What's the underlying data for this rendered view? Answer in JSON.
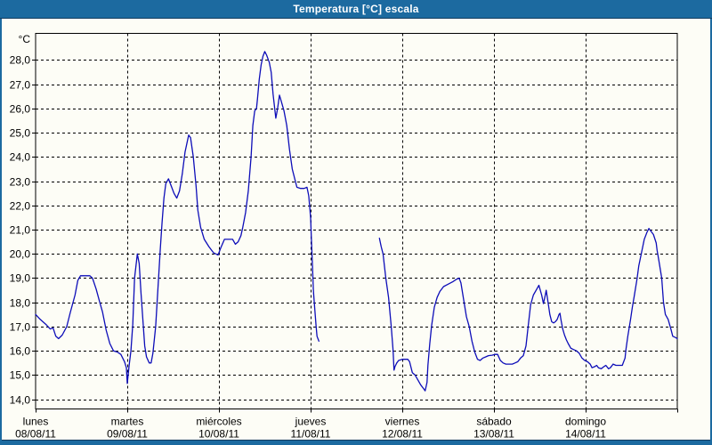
{
  "window": {
    "title": "Temperatura [°C] escala",
    "title_bar_color": "#1c6aa0",
    "frame_border_color": "#123a5e",
    "content_background": "#fdfdf6"
  },
  "chart_data": {
    "type": "line",
    "title": "Temperatura [°C] escala",
    "grid": "dashed",
    "legend": "none",
    "y_axis": {
      "unit": "°C",
      "range": [
        13.6,
        29.1
      ],
      "ticks": [
        {
          "value": 28,
          "label": "28,0"
        },
        {
          "value": 27,
          "label": "27,0"
        },
        {
          "value": 26,
          "label": "26,0"
        },
        {
          "value": 25,
          "label": "25,0"
        },
        {
          "value": 24,
          "label": "24,0"
        },
        {
          "value": 23,
          "label": "23,0"
        },
        {
          "value": 22,
          "label": "22,0"
        },
        {
          "value": 21,
          "label": "21,0"
        },
        {
          "value": 20,
          "label": "20,0"
        },
        {
          "value": 19,
          "label": "19,0"
        },
        {
          "value": 18,
          "label": "18,0"
        },
        {
          "value": 17,
          "label": "17,0"
        },
        {
          "value": 16,
          "label": "16,0"
        },
        {
          "value": 15,
          "label": "15,0"
        },
        {
          "value": 14,
          "label": "14,0"
        }
      ]
    },
    "x_axis": {
      "unit": "days",
      "range_days": [
        0,
        7
      ],
      "days": [
        {
          "weekday": "lunes",
          "date": "08/08/11"
        },
        {
          "weekday": "martes",
          "date": "09/08/11"
        },
        {
          "weekday": "miércoles",
          "date": "10/08/11"
        },
        {
          "weekday": "jueves",
          "date": "11/08/11"
        },
        {
          "weekday": "viernes",
          "date": "12/08/11"
        },
        {
          "weekday": "sábado",
          "date": "13/08/11"
        },
        {
          "weekday": "domingo",
          "date": "14/08/11"
        }
      ]
    },
    "series": [
      {
        "name": "Temperatura",
        "color": "#0d0db8",
        "segments": [
          [
            [
              0.0,
              17.5
            ],
            [
              0.05,
              17.3
            ],
            [
              0.11,
              17.1
            ],
            [
              0.16,
              16.9
            ],
            [
              0.19,
              16.95
            ],
            [
              0.22,
              16.6
            ],
            [
              0.25,
              16.5
            ],
            [
              0.29,
              16.65
            ],
            [
              0.34,
              17.0
            ],
            [
              0.38,
              17.6
            ],
            [
              0.43,
              18.3
            ],
            [
              0.46,
              18.9
            ],
            [
              0.49,
              19.1
            ],
            [
              0.54,
              19.1
            ],
            [
              0.59,
              19.1
            ],
            [
              0.62,
              19.0
            ],
            [
              0.66,
              18.55
            ],
            [
              0.7,
              18.0
            ],
            [
              0.73,
              17.6
            ],
            [
              0.77,
              16.85
            ],
            [
              0.81,
              16.3
            ],
            [
              0.85,
              16.0
            ],
            [
              0.89,
              15.95
            ],
            [
              0.93,
              15.85
            ],
            [
              0.97,
              15.55
            ],
            [
              0.99,
              15.3
            ],
            [
              1.0,
              14.65
            ],
            [
              1.02,
              15.4
            ],
            [
              1.04,
              16.0
            ],
            [
              1.06,
              17.1
            ],
            [
              1.08,
              19.0
            ],
            [
              1.11,
              20.0
            ],
            [
              1.13,
              19.6
            ],
            [
              1.15,
              18.4
            ],
            [
              1.17,
              17.3
            ],
            [
              1.19,
              16.2
            ],
            [
              1.21,
              15.75
            ],
            [
              1.24,
              15.5
            ],
            [
              1.26,
              15.5
            ],
            [
              1.28,
              15.9
            ],
            [
              1.31,
              17.0
            ],
            [
              1.34,
              18.9
            ],
            [
              1.36,
              20.2
            ],
            [
              1.38,
              21.3
            ],
            [
              1.4,
              22.3
            ],
            [
              1.42,
              22.9
            ],
            [
              1.45,
              23.1
            ],
            [
              1.48,
              22.8
            ],
            [
              1.51,
              22.5
            ],
            [
              1.54,
              22.3
            ],
            [
              1.57,
              22.6
            ],
            [
              1.6,
              23.3
            ],
            [
              1.63,
              24.2
            ],
            [
              1.67,
              24.9
            ],
            [
              1.69,
              24.8
            ],
            [
              1.72,
              24.0
            ],
            [
              1.75,
              22.8
            ],
            [
              1.77,
              21.8
            ],
            [
              1.8,
              21.1
            ],
            [
              1.84,
              20.6
            ],
            [
              1.89,
              20.3
            ],
            [
              1.94,
              20.05
            ],
            [
              1.99,
              19.95
            ],
            [
              2.02,
              20.25
            ],
            [
              2.06,
              20.6
            ],
            [
              2.12,
              20.6
            ],
            [
              2.15,
              20.6
            ],
            [
              2.18,
              20.4
            ],
            [
              2.21,
              20.5
            ],
            [
              2.24,
              20.75
            ],
            [
              2.26,
              21.1
            ],
            [
              2.29,
              21.7
            ],
            [
              2.32,
              22.6
            ],
            [
              2.35,
              24.0
            ],
            [
              2.37,
              25.3
            ],
            [
              2.39,
              25.9
            ],
            [
              2.41,
              26.0
            ],
            [
              2.42,
              26.4
            ],
            [
              2.44,
              27.2
            ],
            [
              2.46,
              27.8
            ],
            [
              2.48,
              28.15
            ],
            [
              2.5,
              28.35
            ],
            [
              2.52,
              28.2
            ],
            [
              2.55,
              27.9
            ],
            [
              2.57,
              27.5
            ],
            [
              2.59,
              26.6
            ],
            [
              2.62,
              25.6
            ],
            [
              2.64,
              26.0
            ],
            [
              2.66,
              26.55
            ],
            [
              2.68,
              26.3
            ],
            [
              2.71,
              25.9
            ],
            [
              2.74,
              25.3
            ],
            [
              2.77,
              24.3
            ],
            [
              2.8,
              23.5
            ],
            [
              2.83,
              23.05
            ],
            [
              2.85,
              22.75
            ],
            [
              2.89,
              22.7
            ],
            [
              2.93,
              22.7
            ],
            [
              2.96,
              22.75
            ],
            [
              2.98,
              22.4
            ],
            [
              3.0,
              21.5
            ],
            [
              3.01,
              20.5
            ],
            [
              3.02,
              19.5
            ],
            [
              3.03,
              18.5
            ],
            [
              3.04,
              18.0
            ],
            [
              3.06,
              17.0
            ],
            [
              3.07,
              16.6
            ],
            [
              3.09,
              16.4
            ]
          ],
          [
            [
              3.75,
              20.65
            ],
            [
              3.77,
              20.3
            ],
            [
              3.79,
              20.0
            ],
            [
              3.82,
              19.0
            ],
            [
              3.85,
              18.2
            ],
            [
              3.88,
              17.0
            ],
            [
              3.9,
              16.0
            ],
            [
              3.91,
              15.2
            ],
            [
              3.92,
              15.35
            ],
            [
              3.94,
              15.5
            ],
            [
              3.96,
              15.6
            ],
            [
              4.0,
              15.65
            ],
            [
              4.03,
              15.65
            ],
            [
              4.06,
              15.65
            ],
            [
              4.08,
              15.55
            ],
            [
              4.11,
              15.1
            ],
            [
              4.14,
              15.0
            ],
            [
              4.17,
              14.8
            ],
            [
              4.2,
              14.6
            ],
            [
              4.23,
              14.45
            ],
            [
              4.25,
              14.35
            ],
            [
              4.27,
              14.7
            ],
            [
              4.28,
              15.4
            ],
            [
              4.3,
              16.3
            ],
            [
              4.32,
              17.05
            ],
            [
              4.35,
              17.8
            ],
            [
              4.38,
              18.2
            ],
            [
              4.41,
              18.45
            ],
            [
              4.45,
              18.65
            ],
            [
              4.5,
              18.75
            ],
            [
              4.55,
              18.85
            ],
            [
              4.59,
              18.95
            ],
            [
              4.62,
              19.0
            ],
            [
              4.64,
              18.8
            ],
            [
              4.67,
              18.1
            ],
            [
              4.7,
              17.4
            ],
            [
              4.73,
              17.0
            ],
            [
              4.76,
              16.4
            ],
            [
              4.79,
              15.95
            ],
            [
              4.82,
              15.65
            ],
            [
              4.85,
              15.6
            ],
            [
              4.88,
              15.7
            ],
            [
              4.91,
              15.75
            ],
            [
              4.94,
              15.8
            ],
            [
              4.98,
              15.82
            ],
            [
              5.01,
              15.85
            ],
            [
              5.04,
              15.85
            ],
            [
              5.07,
              15.6
            ],
            [
              5.1,
              15.5
            ],
            [
              5.13,
              15.45
            ],
            [
              5.17,
              15.45
            ],
            [
              5.2,
              15.45
            ],
            [
              5.23,
              15.5
            ],
            [
              5.26,
              15.55
            ],
            [
              5.29,
              15.7
            ],
            [
              5.32,
              15.8
            ],
            [
              5.35,
              16.2
            ],
            [
              5.37,
              16.9
            ],
            [
              5.4,
              17.9
            ],
            [
              5.43,
              18.3
            ],
            [
              5.46,
              18.5
            ],
            [
              5.49,
              18.7
            ],
            [
              5.52,
              18.3
            ],
            [
              5.54,
              17.95
            ],
            [
              5.56,
              18.3
            ],
            [
              5.57,
              18.5
            ],
            [
              5.59,
              18.0
            ],
            [
              5.61,
              17.5
            ],
            [
              5.63,
              17.2
            ],
            [
              5.65,
              17.15
            ],
            [
              5.67,
              17.2
            ],
            [
              5.69,
              17.3
            ],
            [
              5.71,
              17.5
            ],
            [
              5.72,
              17.55
            ],
            [
              5.73,
              17.3
            ],
            [
              5.75,
              16.9
            ],
            [
              5.77,
              16.65
            ],
            [
              5.79,
              16.45
            ],
            [
              5.81,
              16.3
            ],
            [
              5.84,
              16.1
            ],
            [
              5.87,
              16.05
            ],
            [
              5.9,
              16.0
            ],
            [
              5.93,
              15.9
            ],
            [
              5.96,
              15.7
            ],
            [
              5.99,
              15.6
            ],
            [
              6.02,
              15.55
            ],
            [
              6.05,
              15.45
            ],
            [
              6.07,
              15.3
            ],
            [
              6.1,
              15.35
            ],
            [
              6.12,
              15.4
            ],
            [
              6.14,
              15.3
            ],
            [
              6.17,
              15.26
            ],
            [
              6.2,
              15.35
            ],
            [
              6.22,
              15.4
            ],
            [
              6.25,
              15.26
            ],
            [
              6.27,
              15.3
            ],
            [
              6.3,
              15.45
            ],
            [
              6.33,
              15.4
            ],
            [
              6.37,
              15.4
            ],
            [
              6.4,
              15.4
            ],
            [
              6.43,
              15.7
            ],
            [
              6.44,
              16.05
            ],
            [
              6.46,
              16.6
            ],
            [
              6.49,
              17.3
            ],
            [
              6.51,
              17.8
            ],
            [
              6.53,
              18.25
            ],
            [
              6.56,
              18.95
            ],
            [
              6.58,
              19.5
            ],
            [
              6.61,
              20.05
            ],
            [
              6.64,
              20.6
            ],
            [
              6.67,
              20.9
            ],
            [
              6.69,
              21.05
            ],
            [
              6.71,
              20.95
            ],
            [
              6.74,
              20.8
            ],
            [
              6.77,
              20.45
            ],
            [
              6.78,
              20.15
            ],
            [
              6.8,
              19.7
            ],
            [
              6.83,
              19.0
            ],
            [
              6.85,
              18.0
            ],
            [
              6.87,
              17.5
            ],
            [
              6.9,
              17.3
            ],
            [
              6.93,
              16.9
            ],
            [
              6.95,
              16.6
            ],
            [
              6.98,
              16.55
            ],
            [
              7.0,
              16.5
            ]
          ]
        ]
      }
    ]
  }
}
